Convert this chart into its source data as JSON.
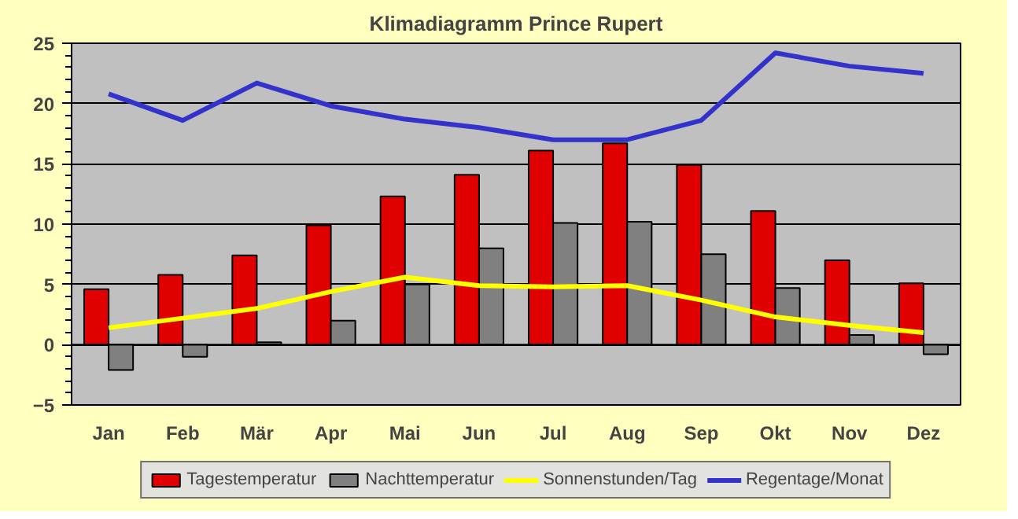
{
  "chart_data": {
    "type": "bar",
    "title": "Klimadiagramm Prince Rupert",
    "categories": [
      "Jan",
      "Feb",
      "Mär",
      "Apr",
      "Mai",
      "Jun",
      "Jul",
      "Aug",
      "Sep",
      "Okt",
      "Nov",
      "Dez"
    ],
    "series": [
      {
        "name": "Tagestemperatur",
        "color": "#e00000",
        "values": [
          4.6,
          5.8,
          7.4,
          9.9,
          12.3,
          14.1,
          16.1,
          16.7,
          14.9,
          11.1,
          7.0,
          5.1
        ]
      },
      {
        "name": "Nachttemperatur",
        "color": "#808080",
        "values": [
          -2.1,
          -1.0,
          0.2,
          2.0,
          5.0,
          8.0,
          10.1,
          10.2,
          7.5,
          4.7,
          0.8,
          -0.8
        ]
      },
      {
        "name": "Sonnenstunden/Tag",
        "type": "line",
        "color": "#ffff00",
        "values": [
          1.4,
          2.2,
          3.0,
          4.4,
          5.6,
          4.9,
          4.8,
          4.9,
          3.7,
          2.3,
          1.6,
          1.0
        ]
      },
      {
        "name": "Regentage/Monat",
        "type": "line",
        "color": "#3333cc",
        "values": [
          20.8,
          18.6,
          21.7,
          19.8,
          18.7,
          18.0,
          17.0,
          17.0,
          18.6,
          24.2,
          23.1,
          22.5
        ]
      }
    ],
    "ylim": [
      -5,
      25
    ],
    "marker": "none",
    "yticks": [
      -5,
      0,
      5,
      10,
      15,
      20,
      25
    ],
    "grid": "y",
    "legend": "bottom",
    "line_style": "solid"
  }
}
